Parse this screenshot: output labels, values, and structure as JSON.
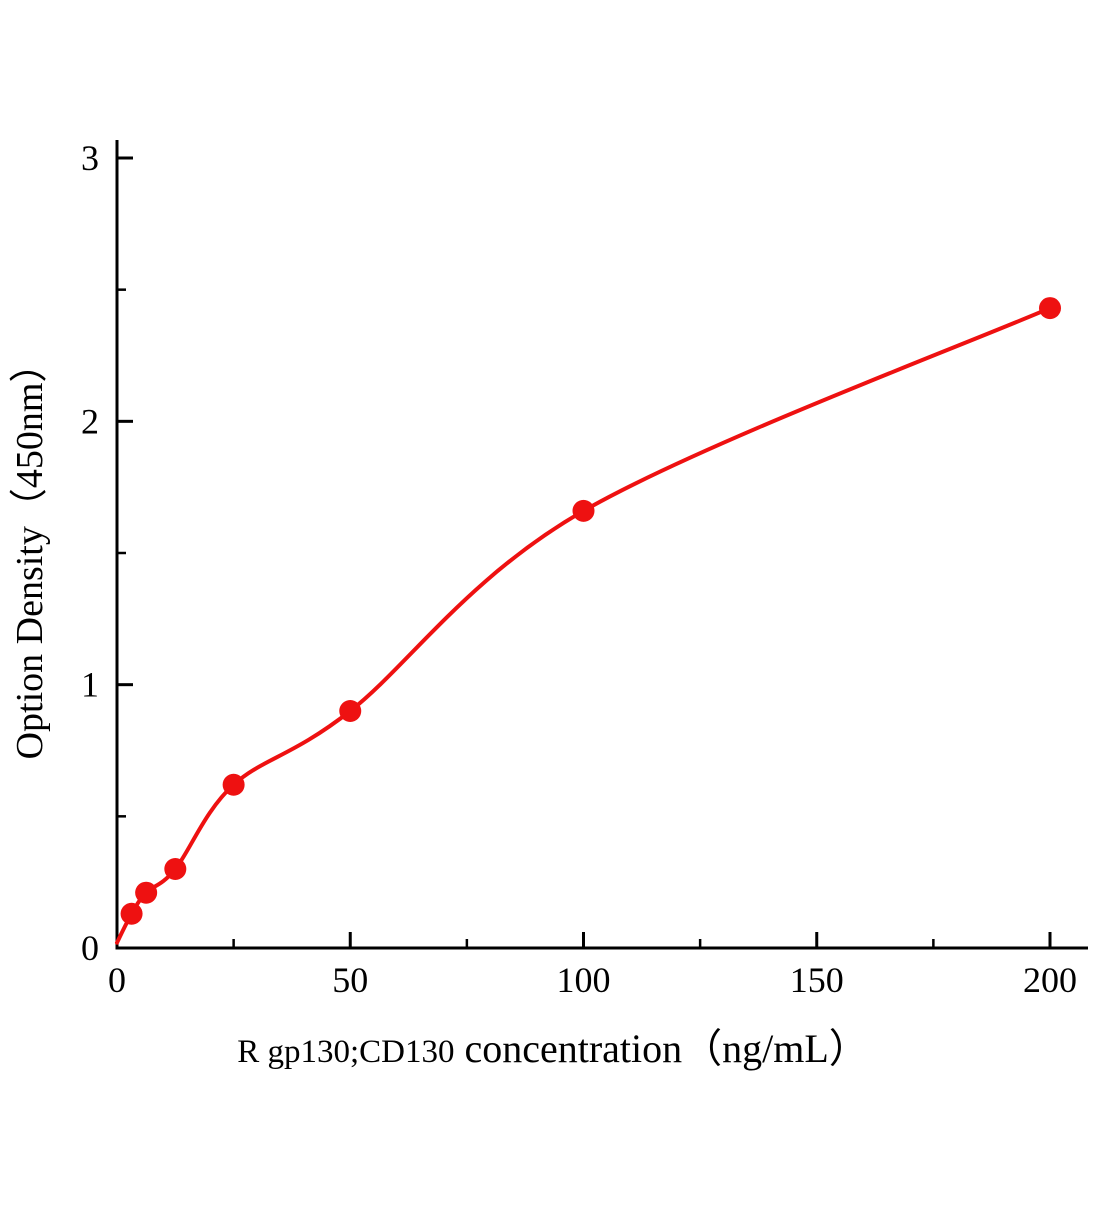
{
  "chart_data": {
    "type": "scatter",
    "title": "",
    "xlabel": "R gp130;CD130 concentration（ng/mL）",
    "xlabel_parts": {
      "prefix": "R gp130;CD130",
      "rest": " concentration（ng/mL）"
    },
    "ylabel": "Option Density（450nm）",
    "x": [
      3.125,
      6.25,
      12.5,
      25,
      50,
      100,
      200
    ],
    "y": [
      0.13,
      0.21,
      0.3,
      0.62,
      0.9,
      1.66,
      2.43
    ],
    "curve_anchors": [
      [
        0,
        0.02
      ],
      [
        3.125,
        0.13
      ],
      [
        6.25,
        0.21
      ],
      [
        12.5,
        0.3
      ],
      [
        25,
        0.62
      ],
      [
        50,
        0.9
      ],
      [
        100,
        1.66
      ],
      [
        200,
        2.43
      ]
    ],
    "xlim": [
      0,
      200
    ],
    "ylim": [
      0,
      3
    ],
    "x_ticks": [
      0,
      50,
      100,
      150,
      200
    ],
    "y_ticks": [
      0,
      1,
      2,
      3
    ],
    "x_minor_ticks": [
      25,
      75,
      125,
      175
    ],
    "y_minor_ticks": [
      0.5,
      1.5,
      2.5
    ],
    "grid": false,
    "legend": "none",
    "accent_color": "#ee1111",
    "axis_color": "#000000"
  }
}
